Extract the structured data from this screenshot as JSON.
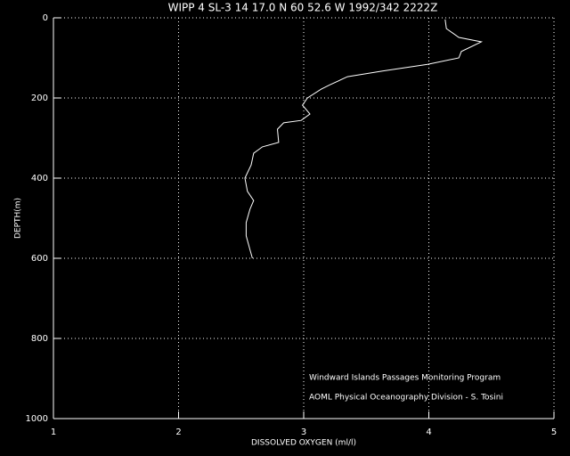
{
  "chart_data": {
    "type": "line",
    "title": "WIPP 4 SL-3  14 17.0 N  60 52.6 W  1992/342 2222Z",
    "x_label": "DISSOLVED OXYGEN (ml/l)",
    "y_label": "DEPTH(m)",
    "annotations": [
      "Windward Islands Passages Monitoring Program",
      "AOML Physical Oceanography Division - S. Tosini"
    ],
    "series": [
      {
        "color": "#ffffff",
        "x": [
          4.13,
          4.14,
          4.24,
          4.42,
          4.26,
          4.24,
          3.99,
          3.63,
          3.35,
          3.21,
          3.14,
          3.03,
          2.99,
          3.05,
          2.98,
          2.84,
          2.79,
          2.8,
          2.67,
          2.6,
          2.58,
          2.53,
          2.55,
          2.6,
          2.57,
          2.54,
          2.54,
          2.57,
          2.59
        ],
        "values": [
          4,
          27,
          49,
          60,
          84,
          100,
          116,
          133,
          147,
          167,
          178,
          200,
          218,
          240,
          256,
          262,
          278,
          311,
          322,
          338,
          367,
          400,
          433,
          456,
          478,
          511,
          544,
          578,
          600
        ]
      }
    ],
    "xlim": [
      1,
      5
    ],
    "xticks": [
      1,
      2,
      3,
      4,
      5
    ],
    "ylim": [
      0,
      1000
    ],
    "yticks": [
      0,
      200,
      400,
      600,
      800,
      1000
    ],
    "y_inverted": true,
    "grid": true
  }
}
